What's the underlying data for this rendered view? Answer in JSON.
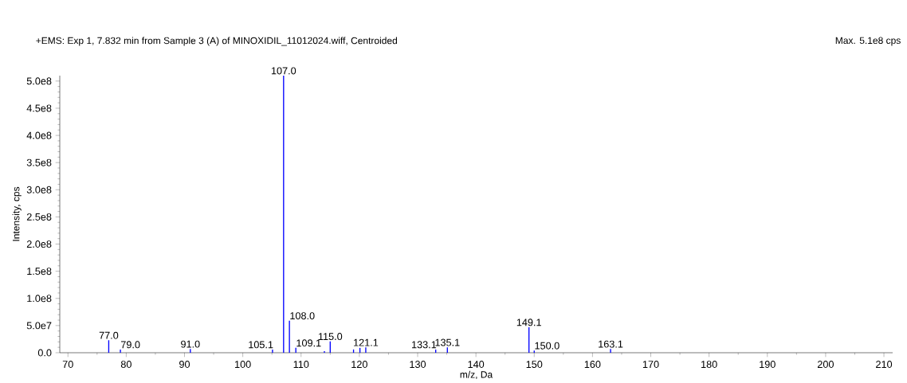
{
  "chart_data": {
    "type": "bar",
    "title": "+EMS: Exp 1, 7.832 min from Sample 3 (A) of MINOXIDIL_11012024.wiff, Centroided",
    "xlabel": "m/z, Da",
    "ylabel": "Intensity, cps",
    "color": "#0000ff",
    "x": [
      77.0,
      79.0,
      91.0,
      103.0,
      105.1,
      107.0,
      108.0,
      109.1,
      110.0,
      114.0,
      115.0,
      117.0,
      119.0,
      120.1,
      121.1,
      122.0,
      133.1,
      135.1,
      137.0,
      149.1,
      150.0,
      161.0,
      163.1
    ],
    "values": [
      23000000.0,
      6000000.0,
      7000000.0,
      null,
      6000000.0,
      510000000.0,
      59000000.0,
      9000000.0,
      null,
      3000000.0,
      21000000.0,
      null,
      6000000.0,
      9000000.0,
      10000000.0,
      null,
      6000000.0,
      10000000.0,
      null,
      47000000.0,
      4000000.0,
      null,
      7000000.0
    ],
    "xlim": [
      68.6,
      211.5
    ],
    "ylim": [
      0,
      510000000.0
    ],
    "xticks": [
      70,
      80,
      90,
      100,
      110,
      120,
      130,
      140,
      150,
      160,
      170,
      180,
      190,
      200,
      210
    ],
    "yticks": [
      {
        "value": 0,
        "label": "0.0"
      },
      {
        "value": 50000000.0,
        "label": "5.0e7"
      },
      {
        "value": 100000000.0,
        "label": "1.0e8"
      },
      {
        "value": 150000000.0,
        "label": "1.5e8"
      },
      {
        "value": 200000000.0,
        "label": "2.0e8"
      },
      {
        "value": 250000000.0,
        "label": "2.5e8"
      },
      {
        "value": 300000000.0,
        "label": "3.0e8"
      },
      {
        "value": 350000000.0,
        "label": "3.5e8"
      },
      {
        "value": 400000000.0,
        "label": "4.0e8"
      },
      {
        "value": 450000000.0,
        "label": "4.5e8"
      },
      {
        "value": 500000000.0,
        "label": "5.0e8"
      }
    ],
    "annotations": [
      "Max. 5.1e8 cps",
      {
        "text": "77.0",
        "x": 77.0,
        "y": 23000000.0
      },
      {
        "text": "79.0",
        "x": 79.0,
        "y": 6000000.0
      },
      {
        "text": "91.0",
        "x": 91.0,
        "y": 7000000.0
      },
      {
        "text": "105.1",
        "x": 105.1,
        "y": 6000000.0
      },
      {
        "text": "107.0",
        "x": 107.0,
        "y": 510000000.0
      },
      {
        "text": "108.0",
        "x": 108.0,
        "y": 59000000.0
      },
      {
        "text": "109.1",
        "x": 109.1,
        "y": 9000000.0
      },
      {
        "text": "115.0",
        "x": 115.0,
        "y": 21000000.0
      },
      {
        "text": "121.1",
        "x": 121.1,
        "y": 10000000.0
      },
      {
        "text": "133.1",
        "x": 133.1,
        "y": 6000000.0
      },
      {
        "text": "135.1",
        "x": 135.1,
        "y": 10000000.0
      },
      {
        "text": "149.1",
        "x": 149.1,
        "y": 47000000.0
      },
      {
        "text": "150.0",
        "x": 150.0,
        "y": 4000000.0
      },
      {
        "text": "163.1",
        "x": 163.1,
        "y": 7000000.0
      }
    ]
  }
}
